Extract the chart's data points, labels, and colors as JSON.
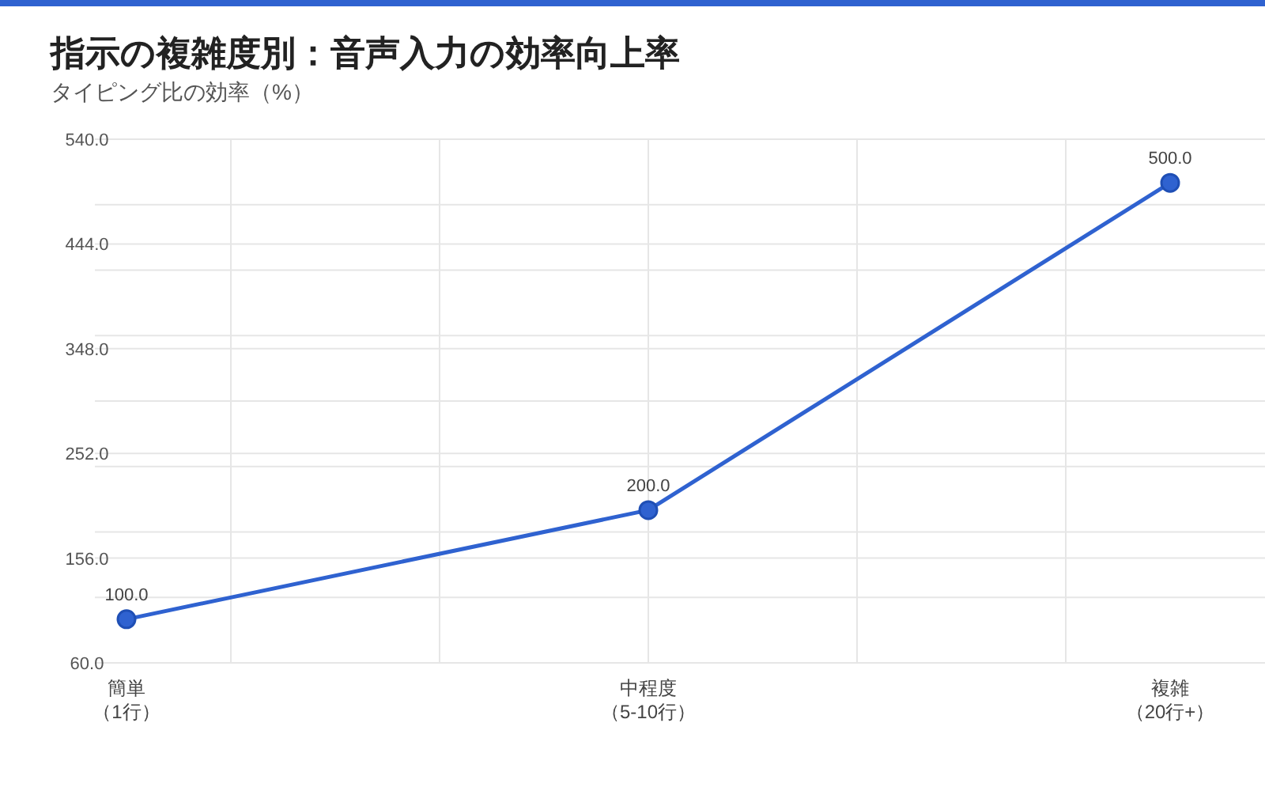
{
  "chart_data": {
    "type": "line",
    "title": "指示の複雑度別：音声入力の効率向上率",
    "subtitle": "タイピング比の効率（%）",
    "categories": [
      "簡単（1行）",
      "中程度（5-10行）",
      "複雑（20行+）"
    ],
    "series": [
      {
        "color": "#2f62d0",
        "values": [
          100,
          200,
          500
        ],
        "value_labels": [
          "100.0",
          "200.0",
          "500.0"
        ]
      }
    ],
    "ylim": [
      60,
      540
    ],
    "yticks": [
      {
        "value": 60,
        "label": "60.0"
      },
      {
        "value": 120,
        "label": null
      },
      {
        "value": 156,
        "label": "156.0"
      },
      {
        "value": 180,
        "label": null
      },
      {
        "value": 240,
        "label": null
      },
      {
        "value": 252,
        "label": "252.0"
      },
      {
        "value": 300,
        "label": null
      },
      {
        "value": 348,
        "label": "348.0"
      },
      {
        "value": 360,
        "label": null
      },
      {
        "value": 420,
        "label": null
      },
      {
        "value": 444,
        "label": "444.0"
      },
      {
        "value": 480,
        "label": null
      },
      {
        "value": 540,
        "label": "540.0"
      }
    ],
    "grid": true,
    "marker": "circle",
    "line_style": "solid"
  }
}
